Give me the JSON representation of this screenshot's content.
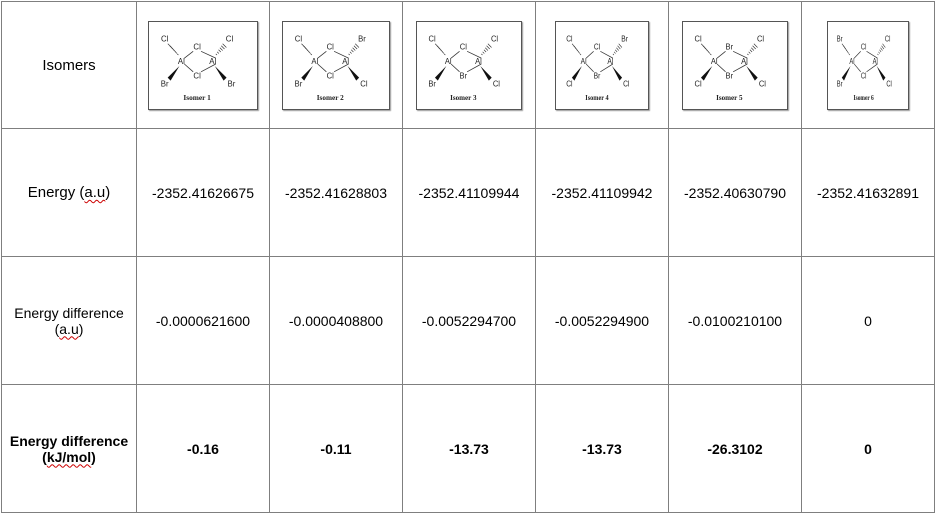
{
  "rows": {
    "isomers_label": "Isomers",
    "energy_label": "Energy (a.u)",
    "energy_label_main": "Energy (",
    "energy_label_unit": "a.u",
    "energy_label_end": ")",
    "diff_au_label_line1": "Energy difference",
    "diff_au_label_open": "(",
    "diff_au_label_unit": "a.u",
    "diff_au_label_close": ")",
    "diff_kj_label_line1": "Energy difference",
    "diff_kj_label_open": "(",
    "diff_kj_label_unit": "kJ/mol",
    "diff_kj_label_close": ")"
  },
  "isomers": [
    {
      "caption": "Isomer 1",
      "atoms": [
        "Cl",
        "Cl",
        "Cl",
        "Br",
        "Cl",
        "Br"
      ],
      "energy": "-2352.41626675",
      "diff_au": "-0.0000621600",
      "diff_kj": "-0.16"
    },
    {
      "caption": "Isomer 2",
      "atoms": [
        "Cl",
        "Cl",
        "Br",
        "Br",
        "Cl",
        "Cl"
      ],
      "energy": "-2352.41628803",
      "diff_au": "-0.0000408800",
      "diff_kj": "-0.11"
    },
    {
      "caption": "Isomer 3",
      "atoms": [
        "Cl",
        "Cl",
        "Cl",
        "Br",
        "Br",
        "Cl"
      ],
      "energy": "-2352.41109944",
      "diff_au": "-0.0052294700",
      "diff_kj": "-13.73"
    },
    {
      "caption": "Isomer 4",
      "atoms": [
        "Cl",
        "Cl",
        "Br",
        "Cl",
        "Br",
        "Cl"
      ],
      "energy": "-2352.41109942",
      "diff_au": "-0.0052294900",
      "diff_kj": "-13.73"
    },
    {
      "caption": "Isomer 5",
      "atoms": [
        "Cl",
        "Br",
        "Cl",
        "Cl",
        "Br",
        "Cl"
      ],
      "energy": "-2352.40630790",
      "diff_au": "-0.0100210100",
      "diff_kj": "-26.3102"
    },
    {
      "caption": "Isomer 6",
      "atoms": [
        "Br",
        "Cl",
        "Cl",
        "Br",
        "Cl",
        "Cl"
      ],
      "energy": "-2352.41632891",
      "diff_au": "0",
      "diff_kj": "0"
    }
  ],
  "metal": "Al"
}
